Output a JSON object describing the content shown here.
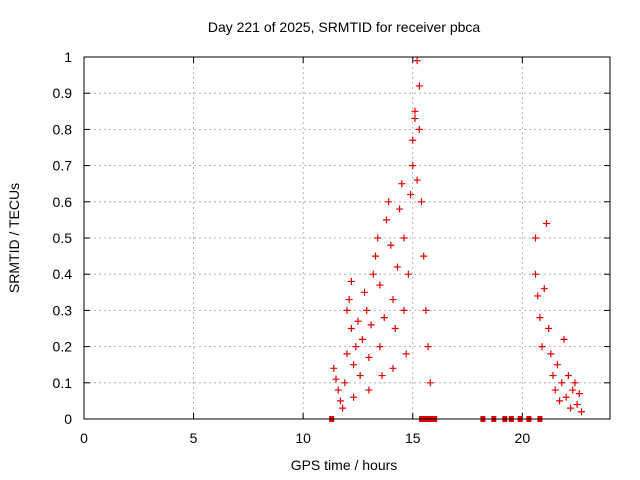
{
  "chart_data": {
    "type": "scatter",
    "title": "Day 221 of 2025, SRMTID for receiver pbca",
    "xlabel": "GPS time / hours",
    "ylabel": "SRMTID / TECUs",
    "xlim": [
      0,
      24
    ],
    "ylim": [
      0,
      1
    ],
    "xticks": [
      0,
      5,
      10,
      15,
      20
    ],
    "yticks": [
      0,
      0.1,
      0.2,
      0.3,
      0.4,
      0.5,
      0.6,
      0.7,
      0.8,
      0.9,
      1
    ],
    "grid": true,
    "marker": "+",
    "color": "#e00000",
    "series": [
      {
        "name": "SRMTID",
        "points": [
          [
            11.4,
            0.14
          ],
          [
            11.5,
            0.11
          ],
          [
            11.6,
            0.08
          ],
          [
            11.7,
            0.05
          ],
          [
            11.8,
            0.03
          ],
          [
            11.9,
            0.1
          ],
          [
            12.0,
            0.18
          ],
          [
            12.0,
            0.3
          ],
          [
            12.1,
            0.33
          ],
          [
            12.2,
            0.38
          ],
          [
            12.2,
            0.25
          ],
          [
            12.3,
            0.15
          ],
          [
            12.3,
            0.06
          ],
          [
            12.4,
            0.2
          ],
          [
            12.5,
            0.27
          ],
          [
            12.6,
            0.12
          ],
          [
            12.7,
            0.22
          ],
          [
            12.8,
            0.35
          ],
          [
            12.9,
            0.3
          ],
          [
            13.0,
            0.17
          ],
          [
            13.0,
            0.08
          ],
          [
            13.1,
            0.26
          ],
          [
            13.2,
            0.4
          ],
          [
            13.3,
            0.45
          ],
          [
            13.4,
            0.5
          ],
          [
            13.5,
            0.37
          ],
          [
            13.5,
            0.2
          ],
          [
            13.6,
            0.12
          ],
          [
            13.7,
            0.28
          ],
          [
            13.8,
            0.55
          ],
          [
            13.9,
            0.6
          ],
          [
            14.0,
            0.48
          ],
          [
            14.1,
            0.33
          ],
          [
            14.1,
            0.14
          ],
          [
            14.2,
            0.25
          ],
          [
            14.3,
            0.42
          ],
          [
            14.4,
            0.58
          ],
          [
            14.5,
            0.65
          ],
          [
            14.6,
            0.5
          ],
          [
            14.6,
            0.3
          ],
          [
            14.7,
            0.18
          ],
          [
            14.8,
            0.4
          ],
          [
            14.9,
            0.62
          ],
          [
            15.0,
            0.7
          ],
          [
            15.0,
            0.77
          ],
          [
            15.1,
            0.83
          ],
          [
            15.1,
            0.85
          ],
          [
            15.2,
            0.99
          ],
          [
            15.2,
            0.66
          ],
          [
            15.3,
            0.8
          ],
          [
            15.3,
            0.92
          ],
          [
            15.4,
            0.6
          ],
          [
            15.5,
            0.45
          ],
          [
            15.6,
            0.3
          ],
          [
            15.7,
            0.2
          ],
          [
            15.8,
            0.1
          ],
          [
            20.6,
            0.5
          ],
          [
            20.6,
            0.4
          ],
          [
            20.7,
            0.34
          ],
          [
            20.8,
            0.28
          ],
          [
            20.9,
            0.2
          ],
          [
            21.0,
            0.36
          ],
          [
            21.1,
            0.54
          ],
          [
            21.2,
            0.25
          ],
          [
            21.3,
            0.18
          ],
          [
            21.4,
            0.12
          ],
          [
            21.5,
            0.08
          ],
          [
            21.6,
            0.15
          ],
          [
            21.7,
            0.05
          ],
          [
            21.8,
            0.1
          ],
          [
            21.9,
            0.22
          ],
          [
            22.0,
            0.06
          ],
          [
            22.1,
            0.12
          ],
          [
            22.2,
            0.03
          ],
          [
            22.3,
            0.08
          ],
          [
            22.4,
            0.1
          ],
          [
            22.5,
            0.04
          ],
          [
            22.6,
            0.07
          ],
          [
            22.7,
            0.02
          ]
        ]
      }
    ],
    "zero_points_x": [
      11.3,
      15.4,
      15.6,
      15.8,
      16.0,
      18.2,
      18.7,
      19.2,
      19.5,
      19.9,
      20.3,
      20.8
    ]
  }
}
